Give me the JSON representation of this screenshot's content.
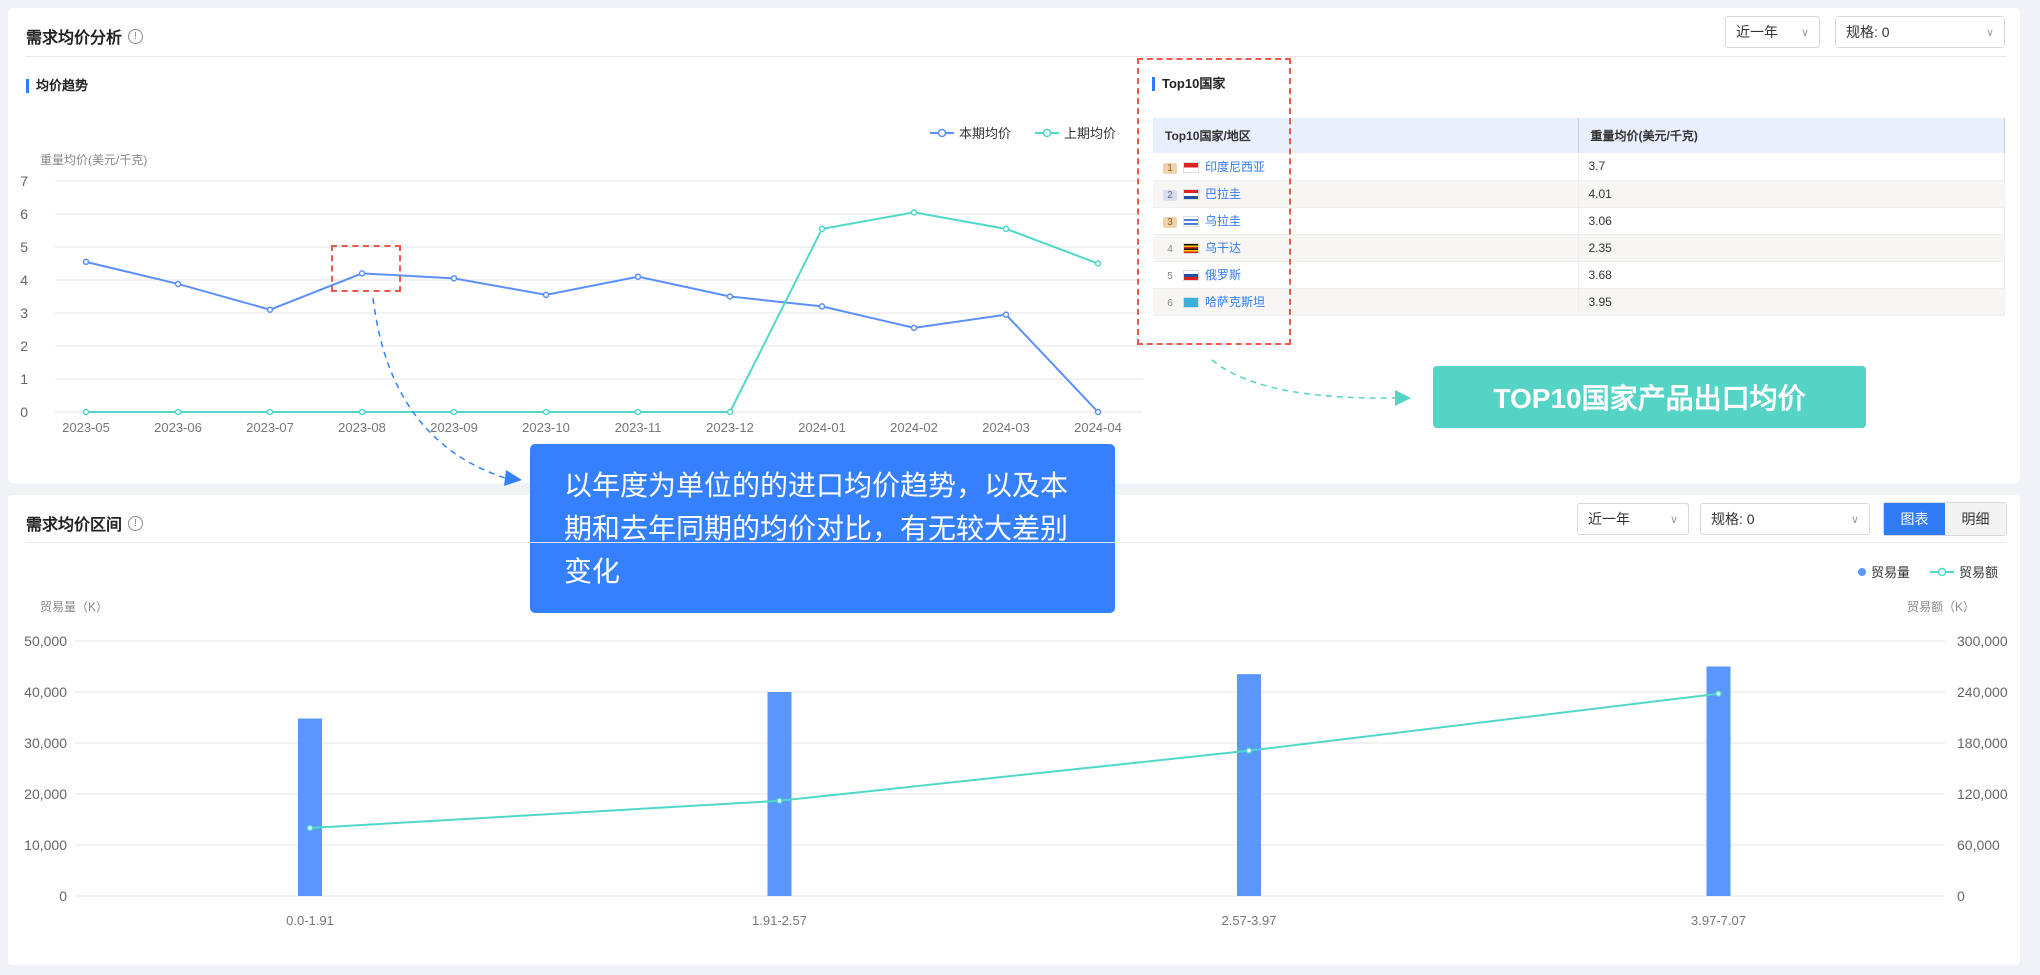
{
  "top_card": {
    "title": "需求均价分析",
    "info_icon": "ⓘ",
    "period_select": "近一年",
    "spec_select": "规格: 0",
    "trend_title": "均价趋势",
    "top10_title": "Top10国家"
  },
  "top10_table": {
    "headers": [
      "Top10国家/地区",
      "重量均价(美元/千克)"
    ],
    "rows": [
      {
        "rank": "1",
        "country": "印度尼西亚",
        "value": "3.7",
        "flag": "indonesia"
      },
      {
        "rank": "2",
        "country": "巴拉圭",
        "value": "4.01",
        "flag": "paraguay"
      },
      {
        "rank": "3",
        "country": "乌拉圭",
        "value": "3.06",
        "flag": "uruguay"
      },
      {
        "rank": "4",
        "country": "乌干达",
        "value": "2.35",
        "flag": "uganda"
      },
      {
        "rank": "5",
        "country": "俄罗斯",
        "value": "3.68",
        "flag": "russia"
      },
      {
        "rank": "6",
        "country": "哈萨克斯坦",
        "value": "3.95",
        "flag": "kazakhstan"
      }
    ]
  },
  "annotations": {
    "trend_note": "以年度为单位的的进口均价趋势，以及本期和去年同期的均价对比，有无较大差别变化",
    "top10_note": "TOP10国家产品出口均价"
  },
  "bottom_card": {
    "title": "需求均价区间",
    "period_select": "近一年",
    "spec_select": "规格: 0",
    "view_chart": "图表",
    "view_detail": "明细"
  },
  "colors": {
    "current": "#5b8ff9",
    "previous": "#4fd8c8",
    "bar": "#5b96fd",
    "accent": "#2f7cf6",
    "note_blue": "#3580ff",
    "note_green": "#55d3c5"
  },
  "chart_data": [
    {
      "type": "line",
      "ylabel": "重量均价(美元/千克)",
      "ylim": [
        0,
        7
      ],
      "yticks": [
        0,
        1,
        2,
        3,
        4,
        5,
        6,
        7
      ],
      "grid": true,
      "legend": "top-right",
      "categories": [
        "2023-05",
        "2023-06",
        "2023-07",
        "2023-08",
        "2023-09",
        "2023-10",
        "2023-11",
        "2023-12",
        "2024-01",
        "2024-02",
        "2024-03",
        "2024-04"
      ],
      "series": [
        {
          "name": "本期均价",
          "values": [
            4.55,
            3.88,
            3.1,
            4.2,
            4.05,
            3.55,
            4.1,
            3.5,
            3.2,
            2.55,
            2.95,
            0
          ]
        },
        {
          "name": "上期均价",
          "values": [
            0,
            0,
            0,
            0,
            0,
            0,
            0,
            0,
            5.55,
            6.05,
            5.55,
            4.5
          ]
        }
      ]
    },
    {
      "type": "bar",
      "ylabel": "贸易量（K）",
      "y2label": "贸易额（K）",
      "ylim": [
        0,
        50000
      ],
      "yticks": [
        "0",
        "10,000",
        "20,000",
        "30,000",
        "40,000",
        "50,000"
      ],
      "y2lim": [
        0,
        300000
      ],
      "y2ticks": [
        "0",
        "60,000",
        "120,000",
        "180,000",
        "240,000",
        "300,000"
      ],
      "grid": true,
      "legend": "top-right",
      "categories": [
        "0.0-1.91",
        "1.91-2.57",
        "2.57-3.97",
        "3.97-7.07"
      ],
      "series": [
        {
          "name": "贸易量",
          "type": "bar",
          "axis": "left",
          "values": [
            34800,
            40000,
            43500,
            45000
          ]
        },
        {
          "name": "贸易额",
          "type": "line",
          "axis": "right",
          "values": [
            80000,
            112000,
            171000,
            238000
          ]
        }
      ]
    }
  ]
}
